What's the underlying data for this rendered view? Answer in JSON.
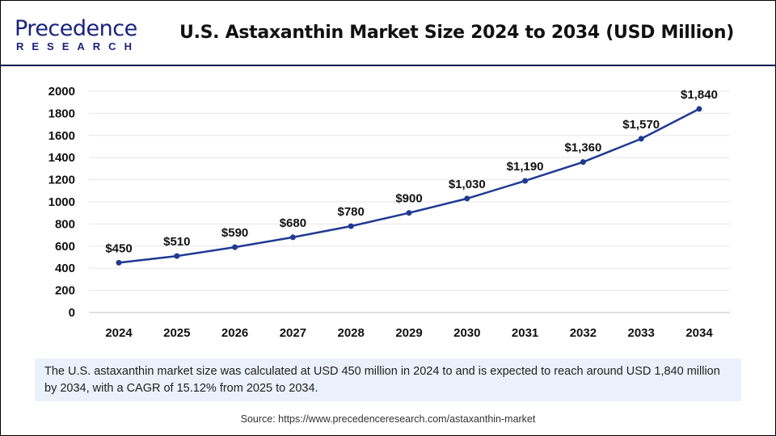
{
  "header": {
    "logo_text_top": "Precedence",
    "logo_text_bottom": "RESEARCH",
    "title": "U.S. Astaxanthin Market Size 2024 to 2034 (USD Million)"
  },
  "chart_data": {
    "type": "line",
    "title": "U.S. Astaxanthin Market Size 2024 to 2034 (USD Million)",
    "xlabel": "",
    "ylabel": "",
    "categories": [
      "2024",
      "2025",
      "2026",
      "2027",
      "2028",
      "2029",
      "2030",
      "2031",
      "2032",
      "2033",
      "2034"
    ],
    "values": [
      450,
      510,
      590,
      680,
      780,
      900,
      1030,
      1190,
      1360,
      1570,
      1840
    ],
    "data_labels": [
      "$450",
      "$510",
      "$590",
      "$680",
      "$780",
      "$900",
      "$1,030",
      "$1,190",
      "$1,360",
      "$1,570",
      "$1,840"
    ],
    "ylim": [
      0,
      2000
    ],
    "yticks": [
      "0",
      "200",
      "400",
      "600",
      "800",
      "1000",
      "1200",
      "1400",
      "1600",
      "1800",
      "2000"
    ],
    "grid": true,
    "line_color": "#1f3a93"
  },
  "note": "The U.S. astaxanthin market size was calculated at USD 450 million in 2024 to and is expected to reach around USD 1,840 million by 2034, with a CAGR of 15.12% from 2025 to 2034.",
  "source": "Source: https://www.precedenceresearch.com/astaxanthin-market"
}
